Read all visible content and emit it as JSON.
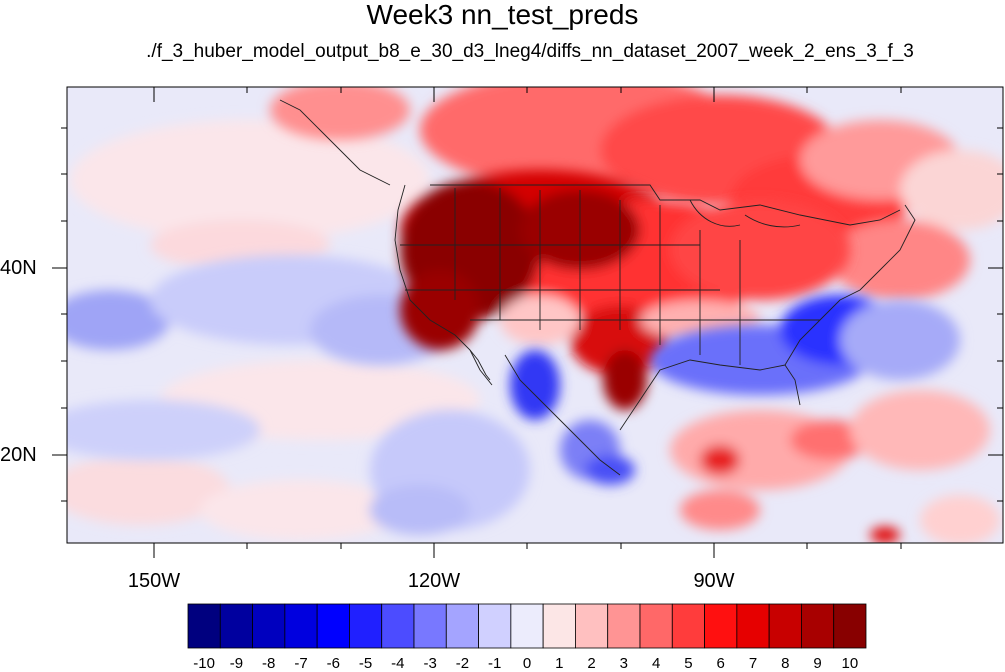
{
  "title": "Week3 nn_test_preds",
  "subtitle": "./f_3_huber_model_output_b8_e_30_d3_lneg4/diffs_nn_dataset_2007_week_2_ens_3_f_3",
  "axes": {
    "lat_labels": [
      "40N",
      "20N"
    ],
    "lon_labels": [
      "150W",
      "120W",
      "90W"
    ]
  },
  "colorbar": {
    "labels": [
      "-10",
      "-9",
      "-8",
      "-7",
      "-6",
      "-5",
      "-4",
      "-3",
      "-2",
      "-1",
      "0",
      "1",
      "2",
      "3",
      "4",
      "5",
      "6",
      "7",
      "8",
      "9",
      "10"
    ],
    "colors": [
      "#00007f",
      "#00009f",
      "#0000bf",
      "#0000df",
      "#0000ff",
      "#2020ff",
      "#4c4cff",
      "#7878ff",
      "#a4a4ff",
      "#d0d0ff",
      "#ececfc",
      "#fce6e6",
      "#ffc0c0",
      "#ff9494",
      "#ff6868",
      "#ff3c3c",
      "#ff1010",
      "#e60000",
      "#c80000",
      "#a80000",
      "#880000"
    ]
  }
}
